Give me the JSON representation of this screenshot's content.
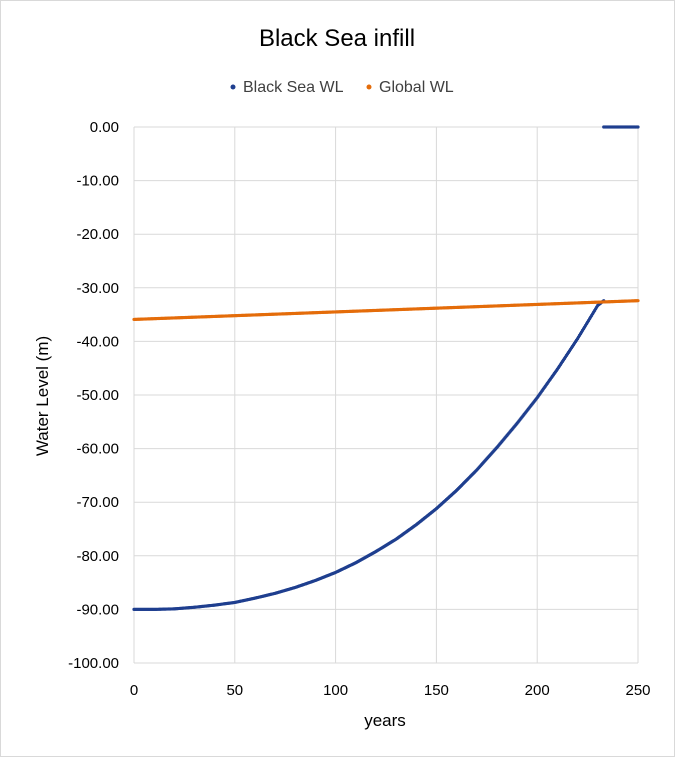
{
  "chart_data": {
    "type": "scatter",
    "title": "Black Sea infill",
    "xlabel": "years",
    "ylabel": "Water Level (m)",
    "xlim": [
      0,
      250
    ],
    "ylim": [
      -100,
      0
    ],
    "x_ticks": [
      "0",
      "50",
      "100",
      "150",
      "200",
      "250"
    ],
    "y_ticks": [
      "0.00",
      "-10.00",
      "-20.00",
      "-30.00",
      "-40.00",
      "-50.00",
      "-60.00",
      "-70.00",
      "-80.00",
      "-90.00",
      "-100.00"
    ],
    "grid": true,
    "legend_position": "top",
    "series": [
      {
        "name": "Black Sea WL",
        "color": "#1f3f8f",
        "points": [
          [
            0,
            -90
          ],
          [
            10,
            -90
          ],
          [
            20,
            -89.9
          ],
          [
            30,
            -89.6
          ],
          [
            40,
            -89.2
          ],
          [
            50,
            -88.7
          ],
          [
            60,
            -87.9
          ],
          [
            70,
            -87.0
          ],
          [
            80,
            -85.9
          ],
          [
            90,
            -84.6
          ],
          [
            100,
            -83.1
          ],
          [
            110,
            -81.3
          ],
          [
            120,
            -79.2
          ],
          [
            130,
            -76.9
          ],
          [
            140,
            -74.2
          ],
          [
            150,
            -71.2
          ],
          [
            160,
            -67.8
          ],
          [
            170,
            -64.0
          ],
          [
            180,
            -59.8
          ],
          [
            190,
            -55.3
          ],
          [
            200,
            -50.5
          ],
          [
            210,
            -45.2
          ],
          [
            220,
            -39.5
          ],
          [
            230,
            -33.3
          ],
          [
            233,
            -32.4
          ],
          [
            233,
            0
          ],
          [
            240,
            0
          ],
          [
            250,
            0
          ]
        ]
      },
      {
        "name": "Global WL",
        "color": "#e46c0a",
        "points": [
          [
            0,
            -35.9
          ],
          [
            50,
            -35.2
          ],
          [
            100,
            -34.5
          ],
          [
            150,
            -33.8
          ],
          [
            200,
            -33.1
          ],
          [
            250,
            -32.4
          ]
        ]
      }
    ]
  }
}
